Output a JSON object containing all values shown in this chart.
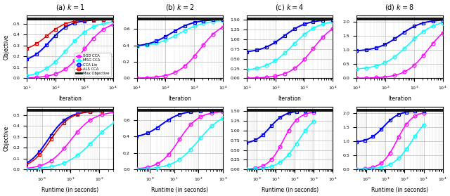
{
  "titles": [
    "(a) $k = 1$",
    "(b) $k = 2$",
    "(c) $k = 4$",
    "(d) $k = 8$"
  ],
  "max_objectives": [
    0.545,
    0.72,
    1.52,
    2.1
  ],
  "colors": {
    "SGD_CCA": "#FF00FF",
    "MSG_CCA": "#00FFFF",
    "CCA_Lin": "#0000EE",
    "ALS_CCA": "#DD0000",
    "Max_Obj": "#111111"
  },
  "legend_labels": [
    "SGD CCA",
    "MSG CCA",
    "CCA Lin",
    "ALS CCA",
    "Max Objective"
  ],
  "xlabel_top": "Iteration",
  "xlabel_bot": "Runtime (in seconds)",
  "ylabel": "Objective",
  "grid_color": "#BBBBBB",
  "background": "#FFFFFF",
  "iter_xlim": [
    10,
    10000
  ],
  "runtime_xlim_k1": [
    0.3,
    300
  ],
  "runtime_xlim_k2": [
    0.3,
    1000
  ],
  "runtime_xlim_k34": [
    0.3,
    10000
  ]
}
